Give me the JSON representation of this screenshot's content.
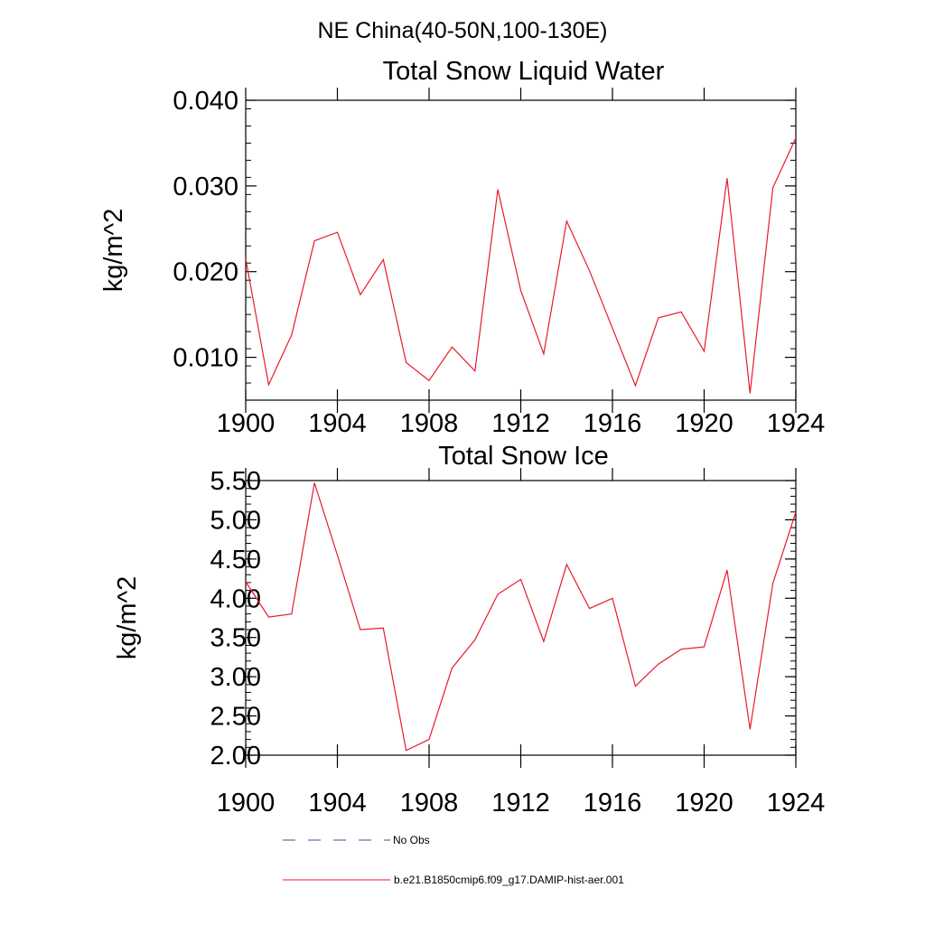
{
  "suptitle": "NE China(40-50N,100-130E)",
  "legend": [
    {
      "label": "No Obs",
      "color": "#4a4a8a",
      "dash": true
    },
    {
      "label": "b.e21.B1850cmip6.f09_g17.DAMIP-hist-aer.001",
      "color": "#e8192c",
      "dash": false
    }
  ],
  "chart_data": [
    {
      "type": "line",
      "title": "Total Snow Liquid Water",
      "ylabel": "kg/m^2",
      "xlim": [
        1900,
        1924
      ],
      "ylim": [
        0.005,
        0.04
      ],
      "xticks": [
        1900,
        1904,
        1908,
        1912,
        1916,
        1920,
        1924
      ],
      "yticks": [
        0.01,
        0.02,
        0.03,
        0.04
      ],
      "yticklabels": [
        "0.010",
        "0.020",
        "0.030",
        "0.040"
      ],
      "grid": false,
      "series": [
        {
          "color": "#e8192c",
          "x": [
            1900,
            1901,
            1902,
            1903,
            1904,
            1905,
            1906,
            1907,
            1908,
            1909,
            1910,
            1911,
            1912,
            1913,
            1914,
            1915,
            1916,
            1917,
            1918,
            1919,
            1920,
            1921,
            1922,
            1923,
            1924
          ],
          "y": [
            0.0215,
            0.0068,
            0.0126,
            0.0236,
            0.0246,
            0.0173,
            0.0214,
            0.0094,
            0.0073,
            0.0112,
            0.0084,
            0.0296,
            0.0178,
            0.0104,
            0.0259,
            0.0201,
            0.0134,
            0.0067,
            0.0146,
            0.0153,
            0.0107,
            0.0309,
            0.0058,
            0.0298,
            0.0356
          ]
        }
      ]
    },
    {
      "type": "line",
      "title": "Total Snow Ice",
      "ylabel": "kg/m^2",
      "xlim": [
        1900,
        1924
      ],
      "ylim": [
        2.0,
        5.5
      ],
      "xticks": [
        1900,
        1904,
        1908,
        1912,
        1916,
        1920,
        1924
      ],
      "yticks": [
        2.0,
        2.5,
        3.0,
        3.5,
        4.0,
        4.5,
        5.0,
        5.5
      ],
      "yticklabels": [
        "2.00",
        "2.50",
        "3.00",
        "3.50",
        "4.00",
        "4.50",
        "5.00",
        "5.50"
      ],
      "grid": false,
      "series": [
        {
          "color": "#e8192c",
          "x": [
            1900,
            1901,
            1902,
            1903,
            1904,
            1905,
            1906,
            1907,
            1908,
            1909,
            1910,
            1911,
            1912,
            1913,
            1914,
            1915,
            1916,
            1917,
            1918,
            1919,
            1920,
            1921,
            1922,
            1923,
            1924
          ],
          "y": [
            4.21,
            3.76,
            3.8,
            5.47,
            4.55,
            3.6,
            3.62,
            2.06,
            2.2,
            3.11,
            3.47,
            4.05,
            4.24,
            3.45,
            4.43,
            3.87,
            4.0,
            2.88,
            3.16,
            3.35,
            3.38,
            4.36,
            2.33,
            4.19,
            5.1
          ]
        }
      ]
    }
  ]
}
